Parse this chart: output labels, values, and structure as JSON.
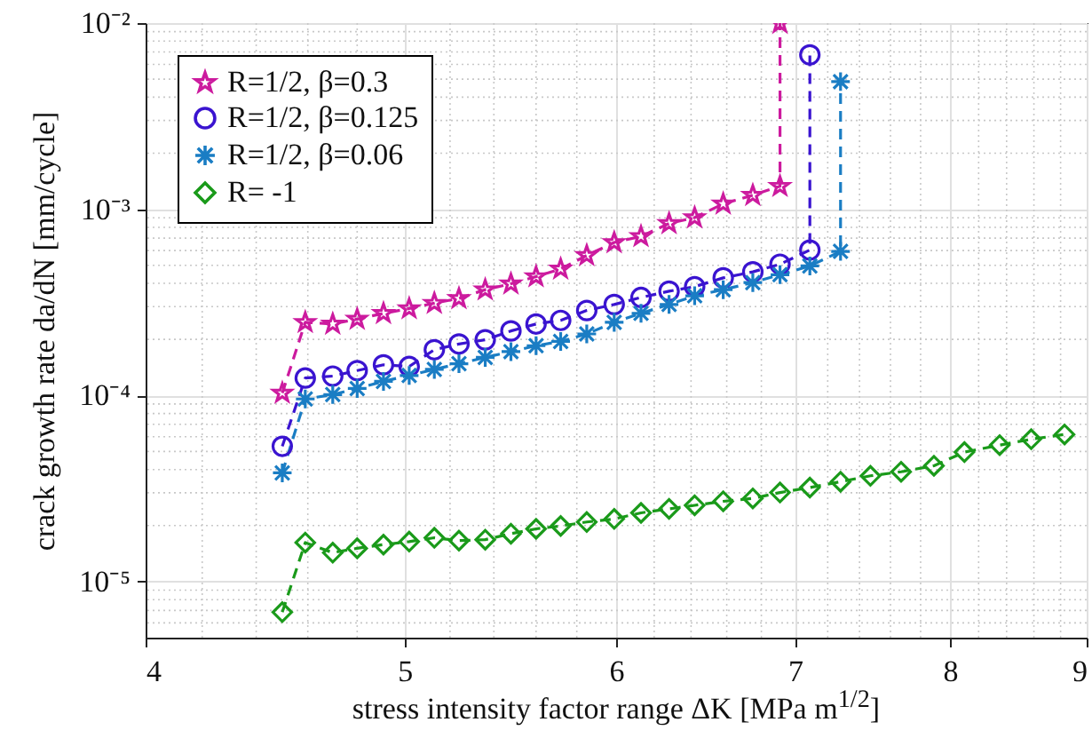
{
  "chart_data": {
    "type": "line",
    "xlabel": "stress intensity factor range ΔK [MPa m$^{1/2}$]",
    "ylabel": "crack growth rate da/dN [mm/cycle]",
    "log": "xy",
    "grid": true,
    "legend": "top left",
    "line_style": "dashed",
    "xlim": [
      4,
      9
    ],
    "xticks": [
      4,
      5,
      6,
      7,
      8,
      9
    ],
    "ylim": [
      5e-06,
      0.01
    ],
    "yticks": [
      {
        "value": 1e-05,
        "label": "10⁻⁵"
      },
      {
        "value": 0.0001,
        "label": "10⁻⁴"
      },
      {
        "value": 0.001,
        "label": "10⁻³"
      },
      {
        "value": 0.01,
        "label": "10⁻²"
      }
    ],
    "series": [
      {
        "name": "R=1/2, β=0.3",
        "color": "#cc1a9e",
        "marker": "star",
        "x": [
          4.5,
          4.59,
          4.7,
          4.8,
          4.91,
          5.02,
          5.13,
          5.24,
          5.36,
          5.48,
          5.6,
          5.72,
          5.85,
          5.99,
          6.13,
          6.28,
          6.42,
          6.58,
          6.75,
          6.91,
          6.91
        ],
        "values": [
          0.000103,
          0.000247,
          0.000242,
          0.000257,
          0.000276,
          0.000293,
          0.000313,
          0.000332,
          0.00037,
          0.000398,
          0.000435,
          0.000478,
          0.000565,
          0.000663,
          0.000715,
          0.000839,
          0.000902,
          0.00107,
          0.00119,
          0.00133,
          0.01
        ]
      },
      {
        "name": "R=1/2, β=0.125",
        "color": "#3a14d0",
        "marker": "circle",
        "x": [
          4.5,
          4.59,
          4.7,
          4.8,
          4.91,
          5.02,
          5.13,
          5.24,
          5.36,
          5.48,
          5.6,
          5.72,
          5.85,
          5.99,
          6.13,
          6.28,
          6.42,
          6.58,
          6.75,
          6.91,
          7.09,
          7.09
        ],
        "values": [
          5.33e-05,
          0.000124,
          0.000127,
          0.000136,
          0.000146,
          0.000143,
          0.000176,
          0.000189,
          0.000199,
          0.000222,
          0.000242,
          0.000253,
          0.000286,
          0.000308,
          0.000336,
          0.000363,
          0.000384,
          0.000428,
          0.000461,
          0.000507,
          0.000604,
          0.00675
        ]
      },
      {
        "name": "R=1/2, β=0.06",
        "color": "#1a7dc4",
        "marker": "cross",
        "x": [
          4.5,
          4.59,
          4.7,
          4.8,
          4.91,
          5.02,
          5.13,
          5.24,
          5.36,
          5.48,
          5.6,
          5.72,
          5.85,
          5.99,
          6.13,
          6.28,
          6.42,
          6.58,
          6.75,
          6.91,
          7.09,
          7.28,
          7.28
        ],
        "values": [
          3.84e-05,
          9.57e-05,
          0.000101,
          0.000109,
          0.000119,
          0.000128,
          0.000138,
          0.000148,
          0.00016,
          0.000172,
          0.000185,
          0.000195,
          0.000214,
          0.000247,
          0.000276,
          0.000308,
          0.000343,
          0.00037,
          0.000404,
          0.000445,
          0.000496,
          0.000594,
          0.00485
        ]
      },
      {
        "name": "R= -1",
        "color": "#1a9a1a",
        "marker": "diamond",
        "x": [
          4.5,
          4.59,
          4.7,
          4.8,
          4.91,
          5.02,
          5.13,
          5.24,
          5.36,
          5.48,
          5.6,
          5.72,
          5.85,
          5.99,
          6.13,
          6.28,
          6.42,
          6.58,
          6.75,
          6.91,
          7.09,
          7.28,
          7.47,
          7.67,
          7.89,
          8.1,
          8.35,
          8.58,
          8.83
        ],
        "values": [
          6.85e-06,
          1.62e-05,
          1.43e-05,
          1.51e-05,
          1.58e-05,
          1.64e-05,
          1.72e-05,
          1.66e-05,
          1.68e-05,
          1.81e-05,
          1.92e-05,
          1.99e-05,
          2.09e-05,
          2.17e-05,
          2.34e-05,
          2.46e-05,
          2.57e-05,
          2.7e-05,
          2.8e-05,
          3.01e-05,
          3.2e-05,
          3.44e-05,
          3.7e-05,
          3.89e-05,
          4.19e-05,
          4.96e-05,
          5.41e-05,
          5.82e-05,
          6.17e-05
        ]
      }
    ]
  }
}
